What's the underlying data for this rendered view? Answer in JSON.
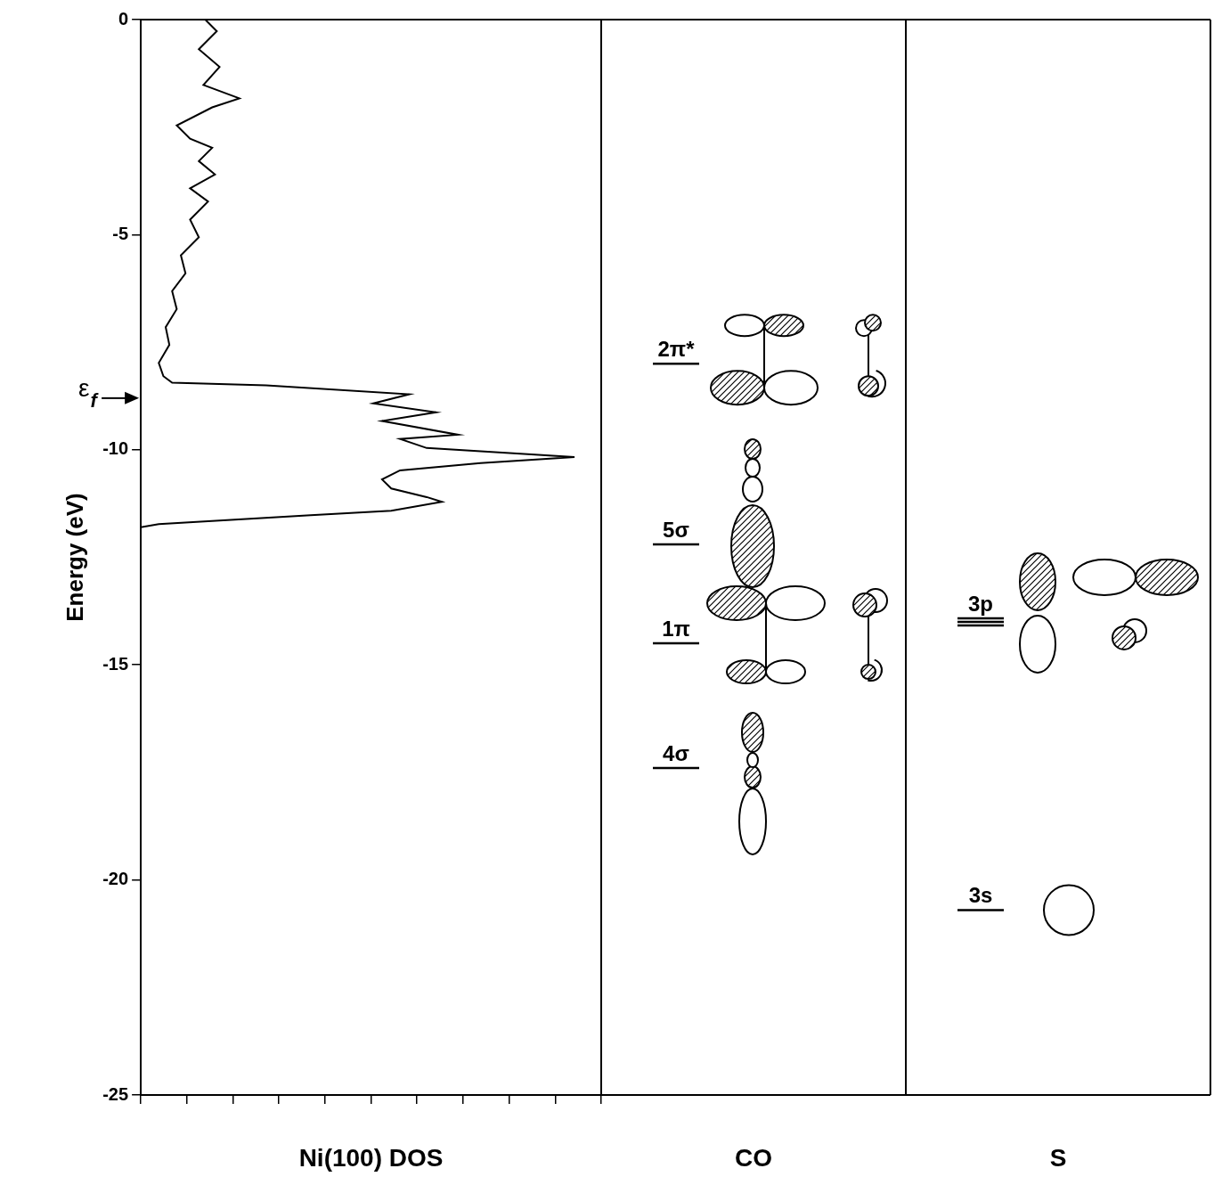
{
  "chart_data": {
    "type": "line",
    "x_label": "Ni(100) DOS",
    "y_label": "Energy (eV)",
    "color": "#000000",
    "line_style": "solid",
    "grid": false,
    "tick_labels": "y",
    "xlim": [
      0,
      10
    ],
    "xticks": [
      0,
      1,
      2,
      3,
      4,
      5,
      6,
      7,
      8,
      9,
      10
    ],
    "ylim": [
      -25,
      0
    ],
    "yticks": [
      -25,
      -20,
      -15,
      -10,
      -5,
      0
    ],
    "x": [
      1.4,
      1.65,
      1.26,
      1.71,
      1.36,
      2.14,
      1.55,
      0.78,
      1.07,
      1.55,
      1.26,
      1.61,
      1.07,
      1.46,
      1.07,
      1.26,
      0.87,
      0.97,
      0.68,
      0.78,
      0.54,
      0.62,
      0.39,
      0.49,
      0.68,
      2.72,
      5.83,
      5.05,
      6.41,
      5.24,
      6.89,
      5.63,
      6.21,
      9.42,
      7.38,
      5.63,
      5.24,
      5.44,
      6.21,
      6.54,
      5.44,
      3.69,
      0.39,
      0
    ],
    "values": [
      0,
      -0.27,
      -0.69,
      -1.1,
      -1.52,
      -1.83,
      -2.04,
      -2.46,
      -2.77,
      -2.98,
      -3.29,
      -3.6,
      -3.92,
      -4.23,
      -4.65,
      -5.06,
      -5.48,
      -5.9,
      -6.31,
      -6.73,
      -7.15,
      -7.56,
      -7.98,
      -8.29,
      -8.44,
      -8.5,
      -8.71,
      -8.92,
      -9.13,
      -9.33,
      -9.65,
      -9.75,
      -9.96,
      -10.17,
      -10.31,
      -10.48,
      -10.69,
      -10.9,
      -11.1,
      -11.21,
      -11.42,
      -11.52,
      -11.73,
      -11.8
    ],
    "annotations": [
      {
        "symbol": "ε",
        "subscript": "f",
        "value": -8.8
      }
    ],
    "panels": [
      {
        "title": "CO",
        "levels": [
          {
            "label": "2π*",
            "energy": -8.0,
            "lines": 1,
            "shape": "pi_antibonding"
          },
          {
            "label": "5σ",
            "energy": -12.2,
            "lines": 1,
            "shape": "sigma_lone_pair"
          },
          {
            "label": "1π",
            "energy": -14.5,
            "lines": 1,
            "shape": "pi_bonding"
          },
          {
            "label": "4σ",
            "energy": -17.4,
            "lines": 1,
            "shape": "sigma"
          }
        ]
      },
      {
        "title": "S",
        "levels": [
          {
            "label": "3p",
            "energy": -14.0,
            "lines": 3,
            "shape": "p"
          },
          {
            "label": "3s",
            "energy": -20.7,
            "lines": 1,
            "shape": "s"
          }
        ]
      }
    ]
  }
}
